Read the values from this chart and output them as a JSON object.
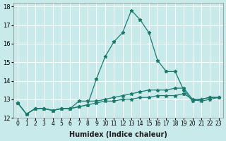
{
  "xlabel": "Humidex (Indice chaleur)",
  "ylabel": "",
  "bg_color": "#c8eaea",
  "grid_color": "#ffffff",
  "line_color": "#1a7a6e",
  "x_data": [
    0,
    1,
    2,
    3,
    4,
    5,
    6,
    7,
    8,
    9,
    10,
    11,
    12,
    13,
    14,
    15,
    16,
    17,
    18,
    19,
    20,
    21,
    22,
    23
  ],
  "line1": [
    12.8,
    12.2,
    12.5,
    12.5,
    12.4,
    12.5,
    12.5,
    12.6,
    12.7,
    14.1,
    15.3,
    16.1,
    16.6,
    17.8,
    17.3,
    16.6,
    15.1,
    14.5,
    14.5,
    13.5,
    12.9,
    13.0,
    13.1,
    13.1
  ],
  "line2": [
    12.8,
    12.2,
    12.5,
    12.5,
    12.4,
    12.5,
    12.5,
    12.9,
    12.9,
    12.9,
    13.0,
    13.1,
    13.2,
    13.3,
    13.4,
    13.5,
    13.5,
    13.5,
    13.6,
    13.6,
    13.0,
    13.0,
    13.1,
    13.1
  ],
  "line3": [
    12.8,
    12.2,
    12.5,
    12.5,
    12.4,
    12.5,
    12.5,
    12.6,
    12.7,
    12.8,
    12.9,
    12.9,
    13.0,
    13.0,
    13.1,
    13.1,
    13.2,
    13.2,
    13.2,
    13.3,
    13.0,
    12.9,
    13.0,
    13.1
  ],
  "ylim": [
    12.0,
    18.2
  ],
  "xlim": [
    -0.5,
    23.5
  ],
  "yticks": [
    12,
    13,
    14,
    15,
    16,
    17,
    18
  ],
  "xtick_labels": [
    "0",
    "1",
    "2",
    "3",
    "4",
    "5",
    "6",
    "7",
    "8",
    "9",
    "10",
    "11",
    "12",
    "13",
    "14",
    "15",
    "16",
    "17",
    "18",
    "19",
    "20",
    "21",
    "22",
    "23"
  ]
}
